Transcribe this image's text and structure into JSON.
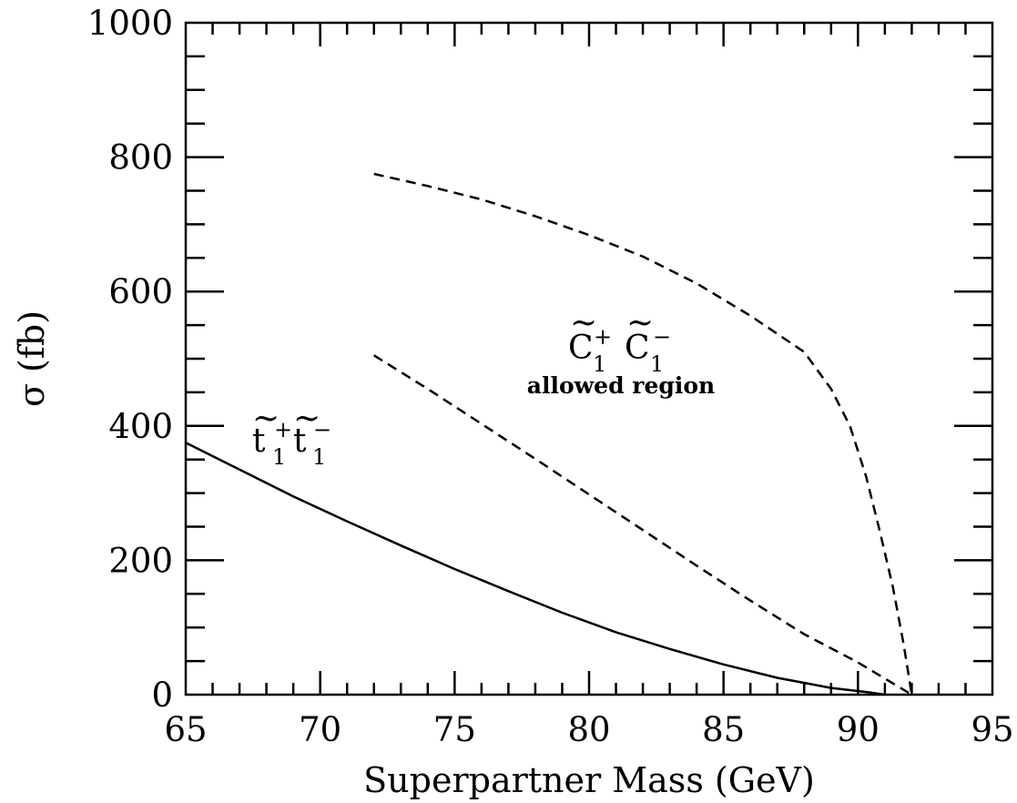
{
  "chart_data": {
    "type": "line",
    "xlabel": "Superpartner Mass (GeV)",
    "ylabel": "σ (fb)",
    "xlim": [
      65,
      95
    ],
    "ylim": [
      0,
      1000
    ],
    "x_ticks": [
      "65",
      "70",
      "75",
      "80",
      "85",
      "90",
      "95"
    ],
    "y_ticks": [
      "0",
      "200",
      "400",
      "600",
      "800",
      "1000"
    ],
    "grid": false,
    "annotations": {
      "stop": {
        "base": "t",
        "sub": "1",
        "sup1": "+",
        "sup2": "−"
      },
      "chargino": {
        "base": "C",
        "sub": "1",
        "sup1": "+",
        "sup2": "−"
      },
      "allowed": "allowed region"
    },
    "series": [
      {
        "style": "solid",
        "x": [
          65,
          67,
          69,
          71,
          73,
          75,
          77,
          79,
          81,
          83,
          85,
          87,
          89,
          90.5,
          91
        ],
        "y": [
          375,
          335,
          295,
          258,
          222,
          187,
          154,
          122,
          93,
          68,
          45,
          25,
          10,
          3,
          0
        ]
      },
      {
        "style": "dashed",
        "x": [
          72,
          74,
          76,
          78,
          80,
          82,
          84,
          86,
          88,
          89,
          89.7,
          90.3,
          90.8,
          91.3,
          91.7,
          92
        ],
        "y": [
          775,
          757,
          737,
          712,
          684,
          652,
          612,
          564,
          510,
          455,
          400,
          325,
          245,
          160,
          75,
          0
        ]
      },
      {
        "style": "dashed",
        "x": [
          72,
          74,
          76,
          78,
          80,
          82,
          84,
          86,
          88,
          90,
          91,
          92
        ],
        "y": [
          505,
          455,
          403,
          351,
          298,
          245,
          192,
          140,
          90,
          48,
          24,
          0
        ]
      }
    ]
  }
}
